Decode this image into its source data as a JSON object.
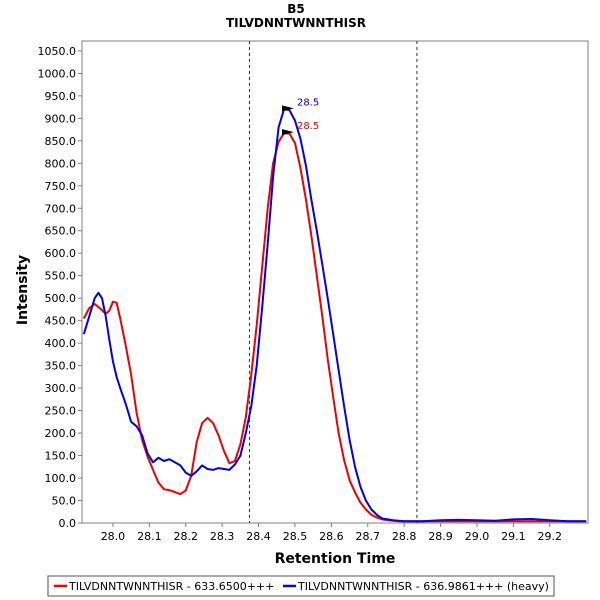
{
  "chart_data": {
    "type": "line",
    "title": "B5",
    "subtitle": "TILVDNNTWNNTHISR",
    "xlabel": "Retention Time",
    "ylabel": "Intensity",
    "xlim": [
      27.915,
      29.305
    ],
    "ylim": [
      0,
      1072
    ],
    "x_ticks": [
      28.0,
      28.1,
      28.2,
      28.3,
      28.4,
      28.5,
      28.6,
      28.7,
      28.8,
      28.9,
      29.0,
      29.1,
      29.2
    ],
    "y_ticks": [
      0,
      50,
      100,
      150,
      200,
      250,
      300,
      350,
      400,
      450,
      500,
      550,
      600,
      650,
      700,
      750,
      800,
      850,
      900,
      950,
      1000,
      1050
    ],
    "tick_decimals": 1,
    "grid": false,
    "integration_bounds": [
      28.375,
      28.835
    ],
    "legend_position": "bottom",
    "series": [
      {
        "name": "TILVDNNTWNNTHISR - 633.6500+++",
        "color": "#ee0000",
        "x": [
          27.92,
          27.935,
          27.95,
          27.965,
          27.98,
          27.99,
          28.0,
          28.01,
          28.02,
          28.035,
          28.05,
          28.065,
          28.08,
          28.095,
          28.11,
          28.125,
          28.14,
          28.155,
          28.17,
          28.185,
          28.2,
          28.215,
          28.23,
          28.245,
          28.26,
          28.275,
          28.29,
          28.305,
          28.32,
          28.335,
          28.35,
          28.365,
          28.38,
          28.395,
          28.41,
          28.425,
          28.44,
          28.455,
          28.47,
          28.485,
          28.5,
          28.515,
          28.53,
          28.545,
          28.56,
          28.575,
          28.59,
          28.605,
          28.62,
          28.635,
          28.65,
          28.665,
          28.68,
          28.695,
          28.71,
          28.725,
          28.74,
          28.755,
          28.77,
          28.785,
          28.8,
          28.815,
          28.83,
          28.85,
          28.9,
          28.95,
          29.0,
          29.05,
          29.1,
          29.15,
          29.2,
          29.25,
          29.3
        ],
        "y": [
          455,
          478,
          487,
          477,
          465,
          472,
          492,
          490,
          455,
          395,
          330,
          245,
          185,
          148,
          118,
          90,
          75,
          73,
          69,
          64,
          72,
          105,
          180,
          222,
          234,
          222,
          195,
          160,
          133,
          138,
          175,
          235,
          330,
          440,
          570,
          700,
          800,
          848,
          867,
          866,
          845,
          790,
          720,
          640,
          550,
          460,
          365,
          280,
          200,
          140,
          95,
          68,
          45,
          30,
          18,
          12,
          8,
          6,
          5,
          4,
          4,
          4,
          4,
          4,
          4,
          4,
          4,
          4,
          4,
          4,
          4,
          4,
          4
        ]
      },
      {
        "name": "TILVDNNTWNNTHISR - 636.9861+++ (heavy)",
        "color": "#0000ee",
        "x": [
          27.92,
          27.935,
          27.95,
          27.96,
          27.97,
          27.98,
          27.99,
          28.0,
          28.01,
          28.02,
          28.035,
          28.05,
          28.065,
          28.08,
          28.095,
          28.11,
          28.125,
          28.14,
          28.155,
          28.17,
          28.185,
          28.2,
          28.215,
          28.23,
          28.245,
          28.26,
          28.275,
          28.29,
          28.305,
          28.32,
          28.335,
          28.35,
          28.365,
          28.38,
          28.395,
          28.41,
          28.425,
          28.44,
          28.455,
          28.47,
          28.485,
          28.5,
          28.515,
          28.53,
          28.545,
          28.56,
          28.575,
          28.59,
          28.605,
          28.62,
          28.635,
          28.65,
          28.665,
          28.68,
          28.695,
          28.71,
          28.725,
          28.74,
          28.755,
          28.77,
          28.785,
          28.8,
          28.815,
          28.83,
          28.85,
          28.9,
          28.95,
          29.0,
          29.05,
          29.1,
          29.15,
          29.2,
          29.25,
          29.3
        ],
        "y": [
          420,
          460,
          500,
          512,
          500,
          460,
          408,
          360,
          325,
          300,
          265,
          225,
          215,
          195,
          155,
          135,
          145,
          138,
          142,
          135,
          128,
          112,
          105,
          115,
          128,
          120,
          118,
          122,
          120,
          118,
          130,
          150,
          200,
          260,
          350,
          480,
          620,
          770,
          880,
          920,
          918,
          895,
          855,
          795,
          720,
          650,
          575,
          500,
          420,
          340,
          260,
          185,
          125,
          80,
          50,
          30,
          18,
          10,
          8,
          6,
          5,
          4,
          4,
          4,
          4,
          6,
          7,
          6,
          5,
          8,
          9,
          6,
          4,
          4
        ]
      }
    ],
    "peak_labels": [
      {
        "series": 0,
        "x": 28.5,
        "y": 867,
        "text": "28.5"
      },
      {
        "series": 1,
        "x": 28.5,
        "y": 920,
        "text": "28.5"
      }
    ]
  }
}
